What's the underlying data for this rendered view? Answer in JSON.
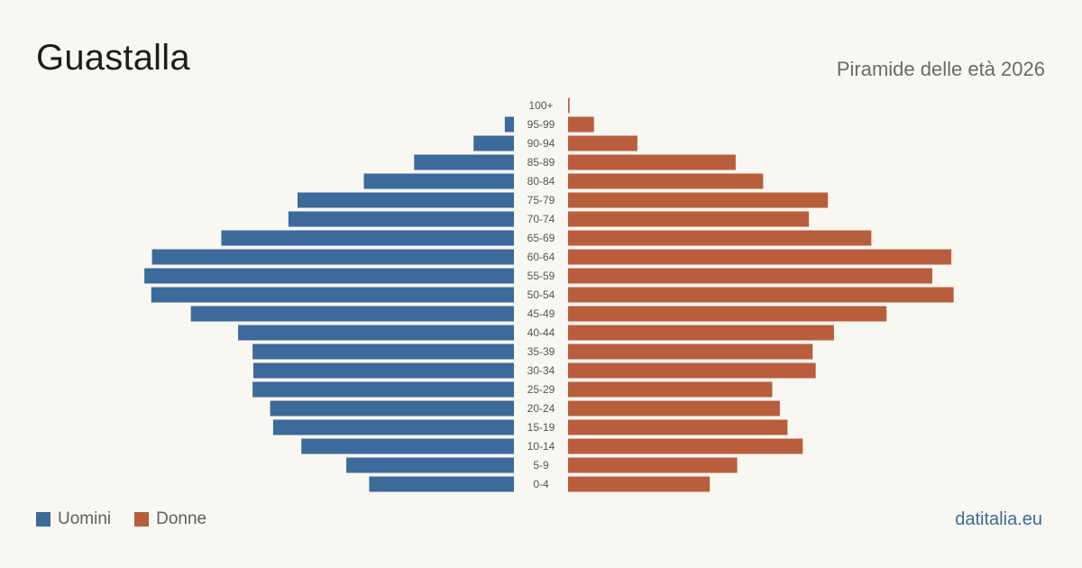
{
  "header": {
    "title": "Guastalla",
    "subtitle": "Piramide delle età 2026"
  },
  "legend": {
    "men_label": "Uomini",
    "women_label": "Donne"
  },
  "footer": {
    "site": "datitalia.eu"
  },
  "colors": {
    "men": "#3b6a9b",
    "women": "#b95e3c",
    "label": "#555555"
  },
  "chart_data": {
    "type": "bar",
    "orientation": "horizontal-pyramid",
    "categories": [
      "100+",
      "95-99",
      "90-94",
      "85-89",
      "80-84",
      "75-79",
      "70-74",
      "65-69",
      "60-64",
      "55-59",
      "50-54",
      "45-49",
      "40-44",
      "35-39",
      "30-34",
      "25-29",
      "20-24",
      "15-19",
      "10-14",
      "5-9",
      "0-4"
    ],
    "series": [
      {
        "name": "Uomini",
        "values": [
          0,
          12,
          53,
          131,
          197,
          284,
          296,
          384,
          475,
          485,
          476,
          424,
          362,
          343,
          342,
          343,
          320,
          316,
          279,
          220,
          190
        ]
      },
      {
        "name": "Donne",
        "values": [
          2,
          34,
          91,
          220,
          256,
          341,
          316,
          398,
          503,
          478,
          506,
          418,
          349,
          321,
          325,
          268,
          278,
          288,
          308,
          222,
          186
        ]
      }
    ],
    "xlim": [
      0,
      510
    ],
    "grid": false,
    "legend_position": "bottom-left"
  }
}
